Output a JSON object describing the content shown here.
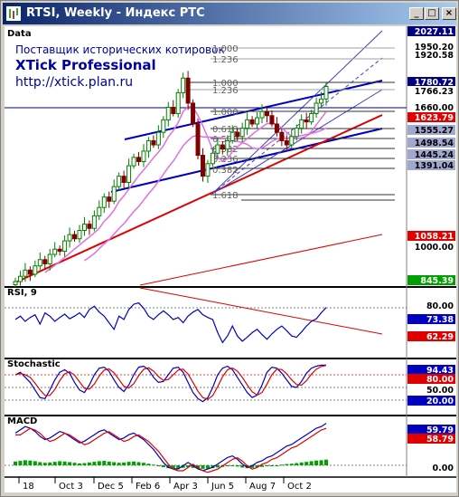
{
  "window": {
    "title": "RTSI, Weekly - Индекс РТС",
    "minimize_symbol": "_",
    "maximize_symbol": "□",
    "close_symbol": "×"
  },
  "watermark": {
    "line1": "Поставщик исторических котировок",
    "line2": "XTick Professional",
    "line3": "http://xtick.plan.ru"
  },
  "panels": {
    "price": {
      "label": "Data"
    },
    "rsi": {
      "label": "RSI, 9"
    },
    "stochastic": {
      "label": "Stochastic"
    },
    "macd": {
      "label": "MACD"
    }
  },
  "price_axis": {
    "labels": [
      {
        "text": "2027.11",
        "style": "dark"
      },
      {
        "text": "1950.20",
        "style": "plain"
      },
      {
        "text": "1920.58",
        "style": "plain"
      },
      {
        "text": "1780.72",
        "style": "dark"
      },
      {
        "text": "1766.23",
        "style": "plain"
      },
      {
        "text": "1660.00",
        "style": "light"
      },
      {
        "text": "1623.79",
        "style": "red"
      },
      {
        "text": "1555.27",
        "style": "mid"
      },
      {
        "text": "1498.54",
        "style": "mid"
      },
      {
        "text": "1445.24",
        "style": "mid"
      },
      {
        "text": "1391.04",
        "style": "mid"
      },
      {
        "text": "1058.21",
        "style": "red"
      },
      {
        "text": "1000.00",
        "style": "plain"
      },
      {
        "text": "845.39",
        "style": "green"
      }
    ]
  },
  "fib_labels": [
    "1.000",
    "1.236",
    "1.000",
    "1.236",
    "1.000",
    "0.618",
    "0.500",
    "0.382",
    "0.236",
    "0.382",
    "1.618"
  ],
  "rsi_axis": [
    {
      "text": "80.00",
      "style": "plain"
    },
    {
      "text": "73.38",
      "style": "blue"
    },
    {
      "text": "62.29",
      "style": "red"
    }
  ],
  "stoch_axis": [
    {
      "text": "94.43",
      "style": "blue"
    },
    {
      "text": "80.00",
      "style": "red"
    },
    {
      "text": "50.00",
      "style": "plain"
    },
    {
      "text": "20.00",
      "style": "blue"
    }
  ],
  "macd_axis": [
    {
      "text": "59.79",
      "style": "blue"
    },
    {
      "text": "58.79",
      "style": "red"
    },
    {
      "text": "0.00",
      "style": "plain"
    }
  ],
  "x_axis": [
    "18",
    "Oct 3",
    "Dec 5",
    "Feb 6",
    "Apr 3",
    "Jun 5",
    "Aug 7",
    "Oct 2"
  ],
  "colors": {
    "up_candle": "#008000",
    "down_candle": "#800000",
    "trend_blue": "#0000c0",
    "trend_red": "#e00000",
    "ma_pink": "#e070e0",
    "axis_dark_bg": "#000080",
    "axis_red_bg": "#e00000",
    "axis_green_bg": "#00a000"
  },
  "chart_data": {
    "type": "candlestick",
    "title": "RTSI, Weekly - Индекс РТС",
    "xlabel": "",
    "ylabel": "",
    "ylim": [
      845,
      2027
    ],
    "close": [
      845,
      870,
      900,
      880,
      920,
      950,
      930,
      975,
      1000,
      990,
      1040,
      1070,
      1050,
      1090,
      1120,
      1100,
      1160,
      1200,
      1250,
      1230,
      1300,
      1350,
      1320,
      1400,
      1440,
      1420,
      1470,
      1520,
      1500,
      1560,
      1620,
      1680,
      1650,
      1750,
      1820,
      1700,
      1600,
      1450,
      1350,
      1410,
      1460,
      1500,
      1480,
      1520,
      1560,
      1540,
      1580,
      1620,
      1600,
      1630,
      1660,
      1640,
      1600,
      1560,
      1520,
      1500,
      1540,
      1580,
      1620,
      1610,
      1650,
      1700,
      1720,
      1780
    ],
    "rsi": [
      55,
      60,
      52,
      58,
      62,
      48,
      65,
      60,
      52,
      58,
      63,
      56,
      60,
      65,
      58,
      70,
      75,
      66,
      60,
      50,
      40,
      60,
      55,
      70,
      78,
      80,
      72,
      60,
      55,
      62,
      68,
      62,
      55,
      58,
      50,
      60,
      66,
      70,
      62,
      58,
      55,
      35,
      20,
      30,
      45,
      30,
      22,
      28,
      35,
      40,
      32,
      25,
      33,
      40,
      45,
      38,
      30,
      28,
      36,
      45,
      52,
      56,
      65,
      73
    ],
    "stochastic_k": [
      75,
      80,
      70,
      60,
      45,
      30,
      28,
      45,
      65,
      80,
      85,
      78,
      60,
      45,
      40,
      55,
      75,
      88,
      90,
      82,
      65,
      50,
      42,
      55,
      75,
      90,
      92,
      85,
      70,
      60,
      62,
      75,
      88,
      90,
      80,
      60,
      40,
      28,
      22,
      30,
      50,
      75,
      88,
      92,
      85,
      70,
      55,
      40,
      30,
      35,
      55,
      80,
      90,
      88,
      78,
      65,
      52,
      50,
      62,
      78,
      88,
      92,
      94,
      94
    ],
    "macd_hist": [
      12,
      14,
      16,
      15,
      13,
      10,
      8,
      9,
      11,
      13,
      12,
      10,
      8,
      6,
      7,
      9,
      11,
      13,
      14,
      12,
      10,
      8,
      9,
      11,
      12,
      10,
      8,
      5,
      2,
      -2,
      -6,
      -9,
      -10,
      -10,
      -8,
      -6,
      -8,
      -10,
      -11,
      -10,
      -9,
      -7,
      -5,
      -3,
      -2,
      -4,
      -7,
      -9,
      -8,
      -6,
      -5,
      -3,
      -2,
      0,
      2,
      4,
      5,
      7,
      9,
      11,
      13,
      15,
      16,
      18
    ]
  }
}
